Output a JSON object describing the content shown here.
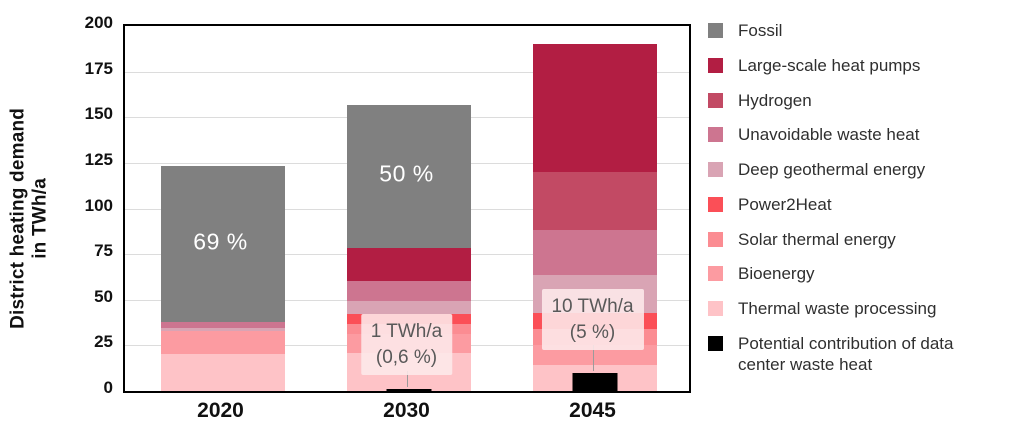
{
  "chart_data": {
    "type": "bar",
    "stacked": true,
    "title": "",
    "ylabel": "District heating demand in TWh/a",
    "ylabel_lines": [
      "District heating demand",
      "in TWh/a"
    ],
    "ylim": [
      0,
      200
    ],
    "ytick_step": 25,
    "yticks": [
      0,
      25,
      50,
      75,
      100,
      125,
      150,
      175,
      200
    ],
    "grid": "horizontal",
    "legend_position": "right",
    "categories": [
      "2020",
      "2030",
      "2045"
    ],
    "totals": [
      123.5,
      157,
      190
    ],
    "series": [
      {
        "name": "Fossil",
        "color": "#808080",
        "values": [
          85.5,
          78.5,
          0
        ]
      },
      {
        "name": "Large-scale heat pumps",
        "color": "#b21e43",
        "values": [
          0,
          18,
          70
        ]
      },
      {
        "name": "Hydrogen",
        "color": "#c24a64",
        "values": [
          0,
          0,
          32
        ]
      },
      {
        "name": "Unavoidable waste heat",
        "color": "#cd7590",
        "values": [
          3.5,
          11,
          24.5
        ]
      },
      {
        "name": "Deep geothermal energy",
        "color": "#d9a4b4",
        "values": [
          1.5,
          7.5,
          21
        ]
      },
      {
        "name": "Power2Heat",
        "color": "#fb4f57",
        "values": [
          0,
          5.5,
          8.5
        ]
      },
      {
        "name": "Solar thermal energy",
        "color": "#fb8c92",
        "values": [
          0,
          5,
          9
        ]
      },
      {
        "name": "Bioenergy",
        "color": "#fc9ba1",
        "values": [
          12.5,
          10.5,
          11
        ]
      },
      {
        "name": "Thermal waste processing",
        "color": "#fec3c7",
        "values": [
          20.5,
          21,
          14
        ]
      },
      {
        "name": "Potential contribution of data center waste heat",
        "color": "#000000",
        "values": [
          0,
          1,
          10
        ],
        "overlay": true
      }
    ],
    "fossil_share_labels": [
      "69 %",
      "50 %",
      ""
    ],
    "annotations": [
      {
        "category": "2030",
        "lines": [
          "1 TWh/a",
          "(0,6 %)"
        ]
      },
      {
        "category": "2045",
        "lines": [
          "10 TWh/a",
          "(5 %)"
        ]
      }
    ]
  }
}
